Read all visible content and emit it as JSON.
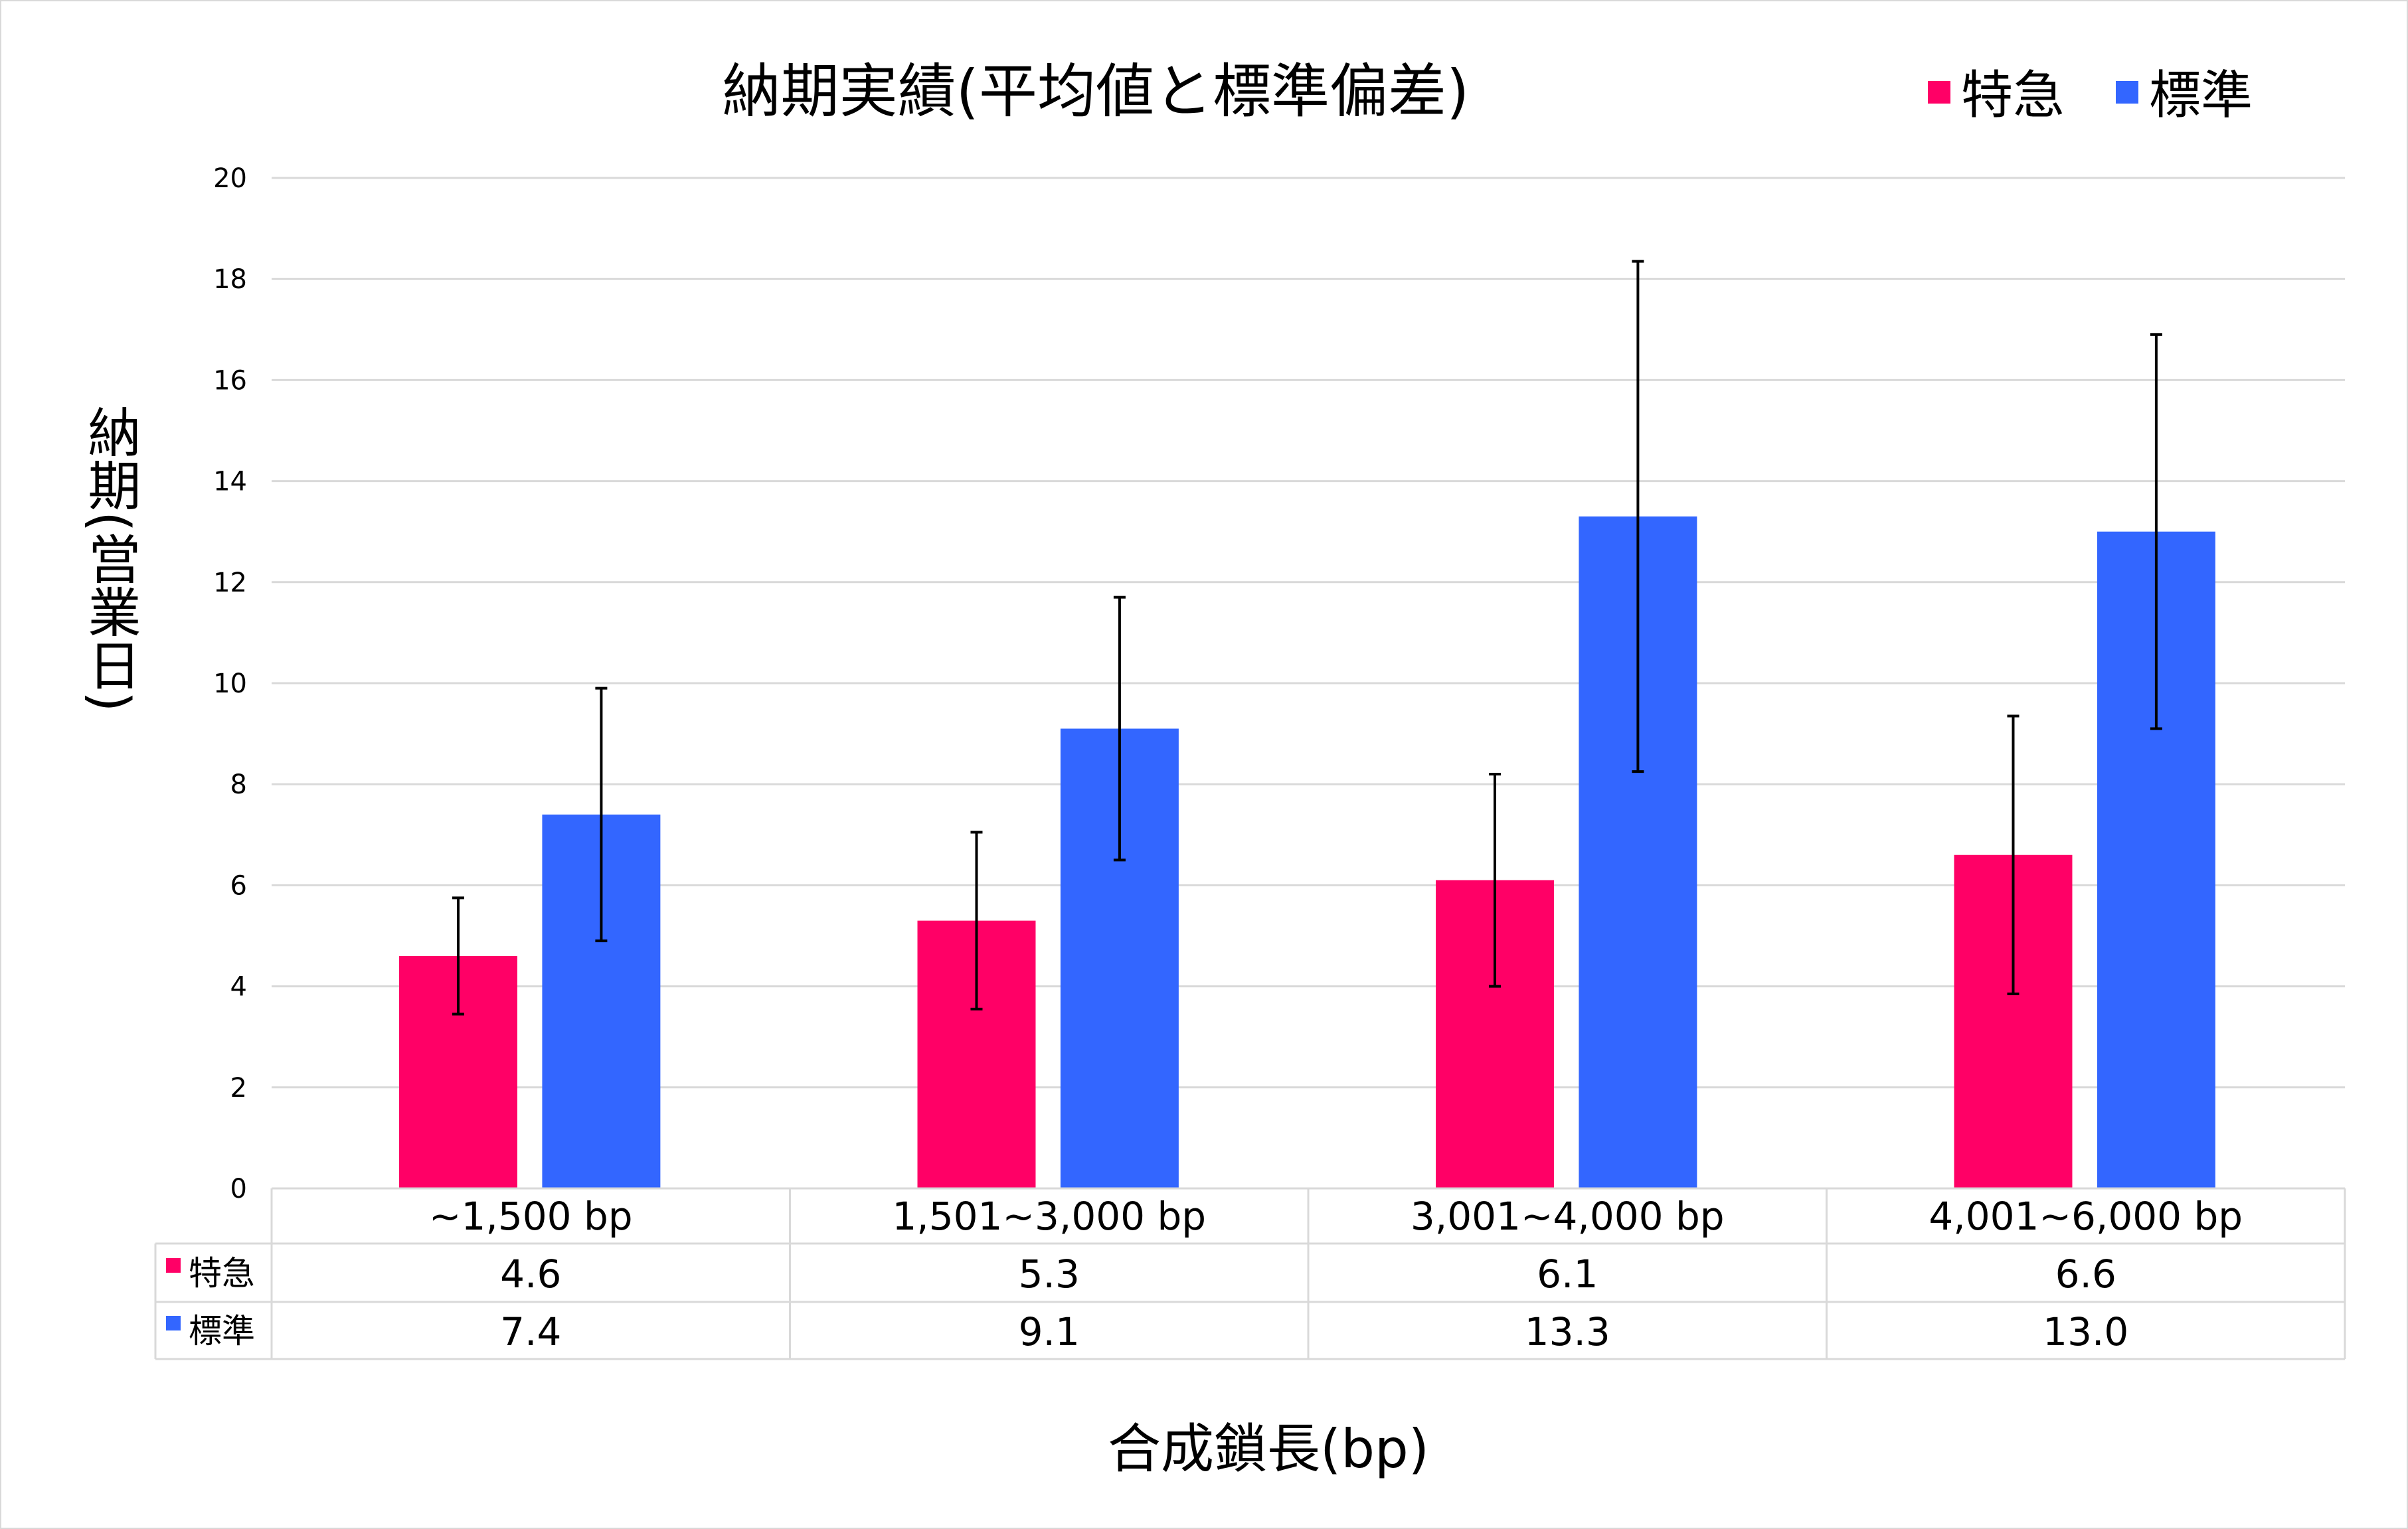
{
  "chart_data": {
    "type": "bar",
    "title": "納期実績(平均値と標準偏差)",
    "xlabel": "合成鎖長(bp)",
    "ylabel": "納期(営業日)",
    "ylim": [
      0,
      20
    ],
    "yticks": [
      0,
      2,
      4,
      6,
      8,
      10,
      12,
      14,
      16,
      18,
      20
    ],
    "grid": true,
    "legend_position": "top-right",
    "categories": [
      "~1,500 bp",
      "1,501~3,000 bp",
      "3,001~4,000 bp",
      "4,001~6,000 bp"
    ],
    "series": [
      {
        "name": "特急",
        "color": "#ff0066",
        "values": [
          4.6,
          5.3,
          6.1,
          6.6
        ],
        "std": [
          1.15,
          1.75,
          2.1,
          2.75
        ],
        "labels": [
          "4.6",
          "5.3",
          "6.1",
          "6.6"
        ]
      },
      {
        "name": "標準",
        "color": "#3366ff",
        "values": [
          7.4,
          9.1,
          13.3,
          13.0
        ],
        "std": [
          2.5,
          2.6,
          5.05,
          3.9
        ],
        "labels": [
          "7.4",
          "9.1",
          "13.3",
          "13.0"
        ]
      }
    ],
    "data_table": true
  }
}
